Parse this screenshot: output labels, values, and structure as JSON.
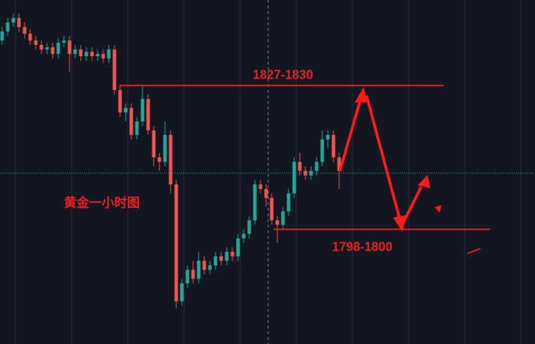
{
  "chart_data": {
    "type": "candlestick",
    "title": "黄金一小时图",
    "open": [
      1840,
      1842,
      1844,
      1845,
      1843,
      1841.5,
      1840,
      1839,
      1838,
      1838.5,
      1837,
      1839.5,
      1840,
      1837,
      1838,
      1836.5,
      1837.5,
      1836.5,
      1837,
      1836,
      1838,
      1829,
      1824,
      1825,
      1819,
      1822,
      1827,
      1820,
      1814,
      1813,
      1819,
      1808,
      1782,
      1786,
      1789,
      1787,
      1791,
      1789,
      1790,
      1792,
      1791,
      1793,
      1792,
      1796,
      1797,
      1800,
      1808,
      1807,
      1805,
      1800,
      1799,
      1802,
      1806,
      1813,
      1811,
      1810,
      1811,
      1813,
      1818,
      1819,
      1814
    ],
    "high": [
      1843,
      1845,
      1846,
      1846,
      1844,
      1842.5,
      1841,
      1840,
      1839.5,
      1839.5,
      1840.5,
      1841,
      1841,
      1839,
      1839,
      1838.5,
      1838.5,
      1838,
      1838,
      1839,
      1839,
      1830,
      1826,
      1826,
      1823,
      1830,
      1828,
      1821,
      1815,
      1822,
      1820,
      1809,
      1787,
      1790,
      1791,
      1793,
      1792,
      1791,
      1793,
      1793,
      1794,
      1794,
      1797,
      1798,
      1801,
      1809,
      1809,
      1808,
      1806,
      1801,
      1803,
      1807,
      1814,
      1815,
      1812,
      1812,
      1814,
      1820,
      1820,
      1820,
      1815
    ],
    "low": [
      1839,
      1841,
      1843,
      1842,
      1840.5,
      1839,
      1838,
      1837,
      1837,
      1836,
      1836,
      1838.5,
      1833,
      1836,
      1835.5,
      1835.5,
      1835.5,
      1835.5,
      1835,
      1835,
      1828,
      1823,
      1822,
      1818,
      1818,
      1821,
      1819,
      1812,
      1811,
      1812,
      1806,
      1780.5,
      1781,
      1785,
      1786,
      1786,
      1788,
      1788,
      1789,
      1790,
      1790,
      1791,
      1791,
      1795,
      1796,
      1799,
      1806,
      1803,
      1799,
      1795,
      1798,
      1801,
      1805,
      1810,
      1809,
      1809,
      1810,
      1812,
      1816,
      1813,
      1807
    ],
    "close": [
      1842,
      1844,
      1845,
      1843,
      1841.5,
      1840,
      1839,
      1838,
      1838.5,
      1837,
      1839.5,
      1840,
      1837,
      1838,
      1836.5,
      1837.5,
      1836.5,
      1837,
      1836,
      1838,
      1829,
      1824,
      1825,
      1819,
      1822,
      1827,
      1820,
      1814,
      1813,
      1819,
      1808,
      1782,
      1786,
      1789,
      1787,
      1791,
      1789,
      1790,
      1792,
      1791,
      1793,
      1792,
      1796,
      1797,
      1800,
      1808,
      1807,
      1805,
      1800,
      1799,
      1802,
      1806,
      1813,
      1811,
      1810,
      1811,
      1813,
      1818,
      1819,
      1814,
      1811
    ],
    "up_color": "#26a69a",
    "down_color": "#ef5350",
    "current_price": 1810.5,
    "levels": [
      {
        "label": "1827-1830",
        "value": 1830,
        "color": "#e8201c"
      },
      {
        "label": "1798-1800",
        "value": 1798,
        "color": "#e8201c"
      }
    ],
    "ylim": [
      1772.5,
      1849
    ]
  }
}
